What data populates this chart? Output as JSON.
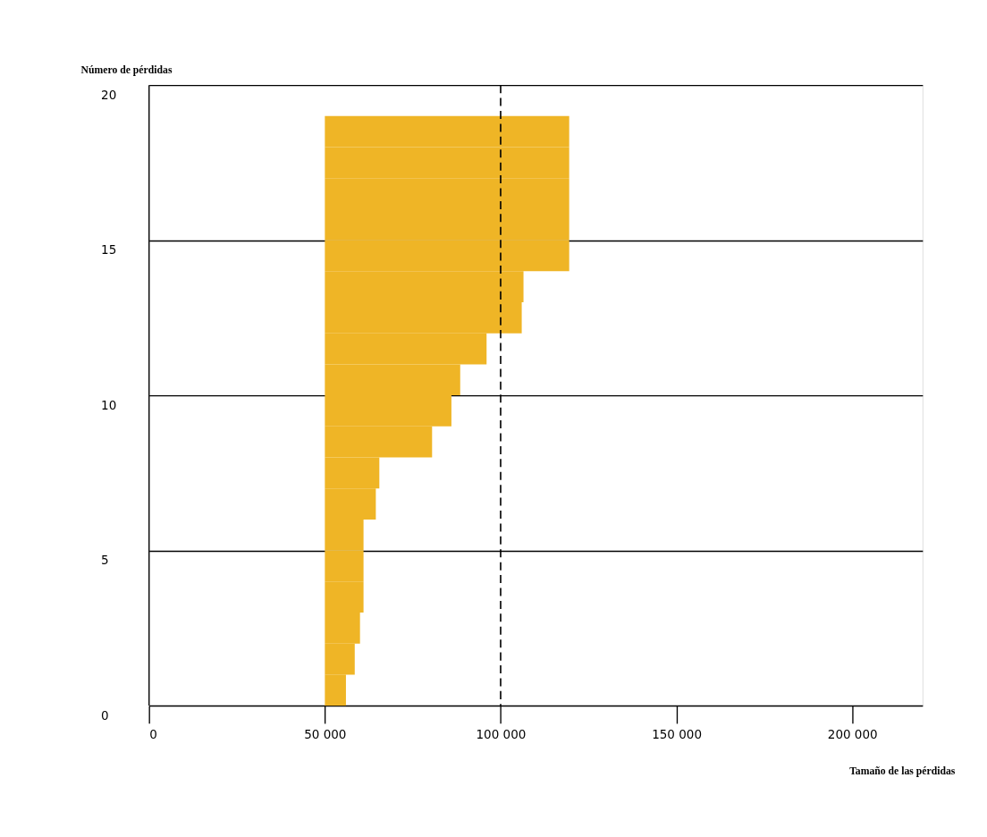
{
  "chart_data": {
    "type": "bar",
    "orientation": "horizontal",
    "ylabel": "Número de pérdidas",
    "xlabel": "Tamaño de las pérdidas",
    "x": [
      0.5,
      1.5,
      2.5,
      3.5,
      4.5,
      5.5,
      6.5,
      7.5,
      8.5,
      9.5,
      10.5,
      11.5,
      12.5,
      13.5,
      14.5,
      15.5,
      16.5,
      17.5,
      18.5
    ],
    "base": [
      50000,
      50000,
      50000,
      50000,
      50000,
      50000,
      50000,
      50000,
      50000,
      50000,
      50000,
      50000,
      50000,
      50000,
      50000,
      50000,
      50000,
      50000,
      50000
    ],
    "values": [
      6000,
      8500,
      10000,
      11000,
      11000,
      11000,
      14500,
      15500,
      30500,
      36000,
      38500,
      46000,
      56000,
      56500,
      69500,
      69500,
      69500,
      69500,
      69500
    ],
    "color": "#efb526",
    "xlim": [
      0,
      220000
    ],
    "xticks": [
      0,
      {
        "value": 50000,
        "label": "50 000"
      },
      {
        "value": 100000,
        "label": "100 000"
      },
      {
        "value": 150000,
        "label": "150 000"
      },
      {
        "value": 200000,
        "label": "200 000"
      }
    ],
    "ylim": [
      0,
      20
    ],
    "yticks": [
      0,
      5,
      10,
      15,
      20
    ],
    "grid": "y",
    "ref_lines": [
      {
        "axis": "x",
        "value": 100000,
        "line_style": "dashed"
      }
    ]
  }
}
